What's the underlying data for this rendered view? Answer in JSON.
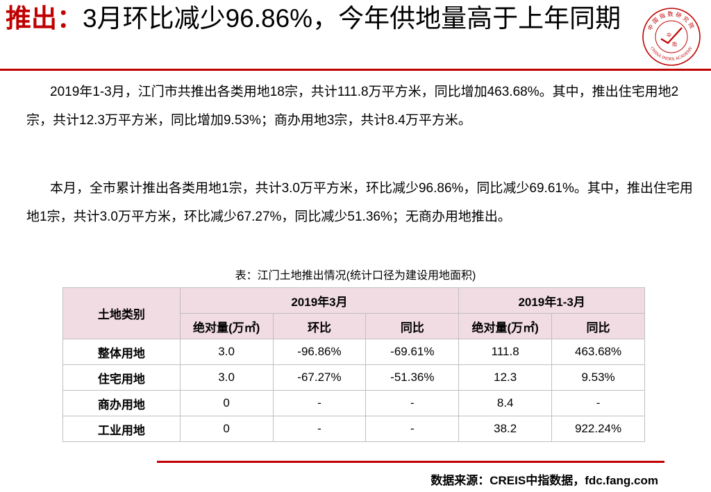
{
  "header": {
    "title_highlight": "推出：",
    "title_rest": "3月环比减少96.86%，今年供地量高于上年同期"
  },
  "logo": {
    "top_text": "中国指数研究院",
    "center_char_1": "中",
    "center_char_2": "指",
    "bottom_text": "CHINA INDEX ACADEMY"
  },
  "paragraphs": [
    "2019年1-3月，江门市共推出各类用地18宗，共计111.8万平方米，同比增加463.68%。其中，推出住宅用地2宗，共计12.3万平方米，同比增加9.53%；商办用地3宗，共计8.4万平方米。",
    "本月，全市累计推出各类用地1宗，共计3.0万平方米，环比减少96.86%，同比减少69.61%。其中，推出住宅用地1宗，共计3.0万平方米，环比减少67.27%，同比减少51.36%；无商办用地推出。"
  ],
  "table": {
    "caption": "表：江门土地推出情况(统计口径为建设用地面积)",
    "corner_header": "土地类别",
    "group_headers": [
      "2019年3月",
      "2019年1-3月"
    ],
    "sub_headers": [
      "绝对量(万㎡)",
      "环比",
      "同比",
      "绝对量(万㎡)",
      "同比"
    ],
    "rows": [
      {
        "category": "整体用地",
        "cells": [
          "3.0",
          "-96.86%",
          "-69.61%",
          "111.8",
          "463.68%"
        ]
      },
      {
        "category": "住宅用地",
        "cells": [
          "3.0",
          "-67.27%",
          "-51.36%",
          "12.3",
          "9.53%"
        ]
      },
      {
        "category": "商办用地",
        "cells": [
          "0",
          "-",
          "-",
          "8.4",
          "-"
        ]
      },
      {
        "category": "工业用地",
        "cells": [
          "0",
          "-",
          "-",
          "38.2",
          "922.24%"
        ]
      }
    ]
  },
  "footer": {
    "source": "数据来源：CREIS中指数据，fdc.fang.com"
  },
  "colors": {
    "accent": "#c00000",
    "header_fill": "#f2dce4",
    "grid": "#bfbfbf"
  }
}
